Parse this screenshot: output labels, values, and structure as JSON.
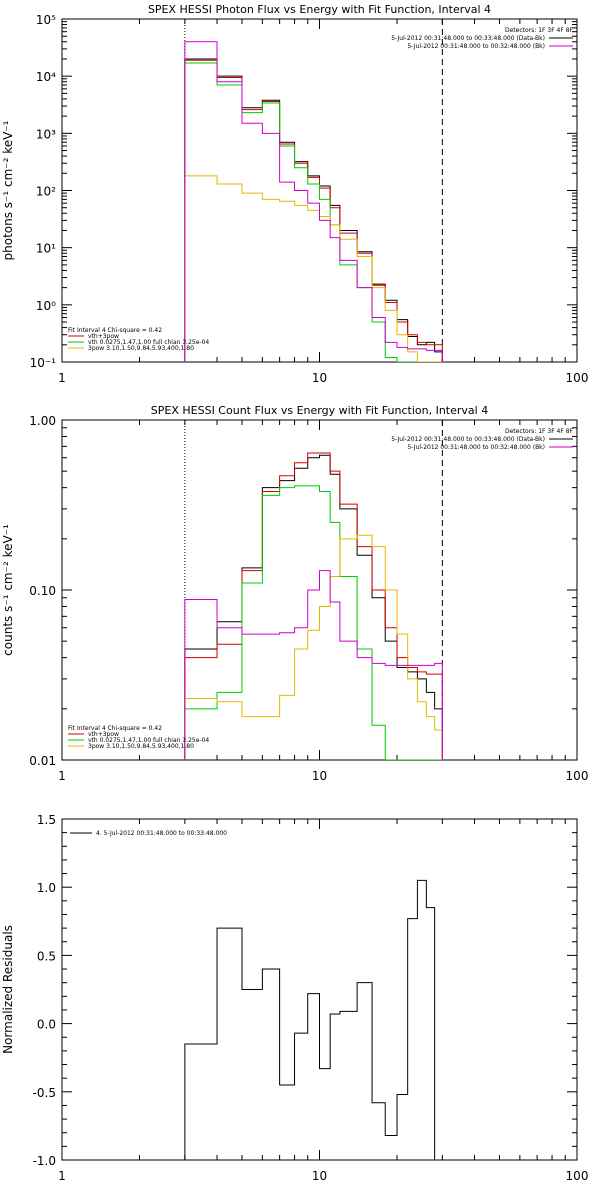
{
  "colors": {
    "data": "#000000",
    "total": "#d00000",
    "thermal": "#00cc00",
    "power": "#e6b800",
    "background": "#cc00cc"
  },
  "chart_data": [
    {
      "type": "line",
      "title": "SPEX HESSI Photon Flux vs Energy with Fit Function, Interval 4",
      "ylabel": "photons s⁻¹ cm⁻² keV⁻¹",
      "xlabel": "",
      "xscale": "log",
      "yscale": "log",
      "xlim": [
        1,
        100
      ],
      "ylim": [
        0.1,
        100000
      ],
      "xtick_labels": [
        "1",
        "10",
        "100"
      ],
      "ytick_labels": [
        "10⁻¹",
        "10⁰",
        "10¹",
        "10²",
        "10³",
        "10⁴",
        "10⁵"
      ],
      "legend_right": [
        "Detectors: 1F 3F 4F 8F",
        "5-Jul-2012 00:31:48.000 to 00:33:48.000 (Data-Bk)",
        "5-Jul-2012 00:31:48.000 to 00:32:48.000 (Bk)"
      ],
      "legend_left": [
        "Fit Interval 4   Chi-square = 0.42",
        "vth+3pow",
        "vth 0.0275,1.47,1.00  full chian 3.25e-04",
        "3pow 3.10,1.50,9.84,5.93,400,1.80"
      ],
      "vlines": [
        3,
        30
      ],
      "edges": [
        3,
        4,
        5,
        6,
        7,
        8,
        9,
        10,
        11,
        12,
        14,
        16,
        18,
        20,
        22,
        24,
        26,
        28,
        30
      ],
      "series": [
        {
          "name": "Data-Bk",
          "color_key": "data",
          "values": [
            20000,
            10000,
            2800,
            3800,
            700,
            320,
            180,
            120,
            55,
            20,
            8.5,
            2.3,
            1.2,
            0.55,
            0.28,
            0.2,
            0.22,
            0.15
          ]
        },
        {
          "name": "vth+3pow",
          "color_key": "total",
          "values": [
            19000,
            9500,
            2600,
            3600,
            650,
            300,
            170,
            110,
            50,
            18,
            8,
            2.2,
            1.1,
            0.5,
            0.3,
            0.22,
            0.2,
            0.2
          ]
        },
        {
          "name": "vth",
          "color_key": "thermal",
          "values": [
            17000,
            7000,
            2300,
            3400,
            600,
            250,
            130,
            70,
            25,
            5,
            2,
            0.5,
            0.12,
            0.1,
            0.1,
            0.1,
            0.1,
            0.1
          ]
        },
        {
          "name": "3pow",
          "color_key": "power",
          "values": [
            180,
            130,
            90,
            70,
            65,
            55,
            45,
            35,
            25,
            14,
            7,
            2,
            0.8,
            0.3,
            0.15,
            0.1,
            0.1,
            0.1
          ]
        },
        {
          "name": "Bk",
          "color_key": "background",
          "values": [
            40000,
            8000,
            1500,
            1000,
            140,
            100,
            60,
            30,
            15,
            6,
            2,
            0.6,
            0.22,
            0.18,
            0.17,
            0.17,
            0.16,
            0.16
          ]
        }
      ]
    },
    {
      "type": "line",
      "title": "SPEX HESSI Count Flux vs Energy with Fit Function, Interval 4",
      "ylabel": "counts s⁻¹ cm⁻² keV⁻¹",
      "xlabel": "",
      "xscale": "log",
      "yscale": "log",
      "xlim": [
        1,
        100
      ],
      "ylim": [
        0.01,
        1
      ],
      "xtick_labels": [
        "1",
        "10",
        "100"
      ],
      "ytick_labels": [
        "0.01",
        "0.10",
        "1.00"
      ],
      "legend_right": [
        "Detectors: 1F 3F 4F 8F",
        "5-Jul-2012 00:31:48.000 to 00:33:48.000 (Data-Bk)",
        "5-Jul-2012 00:31:48.000 to 00:32:48.000 (Bk)"
      ],
      "legend_left": [
        "Fit Interval 4   Chi-square = 0.42",
        "vth+3pow",
        "vth 0.0275,1.47,1.00  full chian 3.25e-04",
        "3pow 3.10,1.50,9.84,5.93,400,1.80"
      ],
      "vlines": [
        3,
        30
      ],
      "edges": [
        3,
        4,
        5,
        6,
        7,
        8,
        9,
        10,
        11,
        12,
        14,
        16,
        18,
        20,
        22,
        24,
        26,
        28,
        30
      ],
      "series": [
        {
          "name": "Data-Bk",
          "color_key": "data",
          "values": [
            0.045,
            0.065,
            0.135,
            0.4,
            0.44,
            0.52,
            0.6,
            0.62,
            0.48,
            0.3,
            0.16,
            0.09,
            0.05,
            0.035,
            0.033,
            0.03,
            0.025,
            0.02
          ]
        },
        {
          "name": "vth+3pow",
          "color_key": "total",
          "values": [
            0.04,
            0.048,
            0.13,
            0.38,
            0.47,
            0.56,
            0.64,
            0.64,
            0.5,
            0.32,
            0.18,
            0.1,
            0.06,
            0.04,
            0.035,
            0.033,
            0.032,
            0.032
          ]
        },
        {
          "name": "vth",
          "color_key": "thermal",
          "values": [
            0.02,
            0.025,
            0.11,
            0.36,
            0.4,
            0.41,
            0.41,
            0.38,
            0.25,
            0.12,
            0.045,
            0.016,
            0.01,
            0.01,
            0.01,
            0.01,
            0.01,
            0.01
          ]
        },
        {
          "name": "3pow",
          "color_key": "power",
          "values": [
            0.023,
            0.022,
            0.018,
            0.018,
            0.024,
            0.045,
            0.058,
            0.08,
            0.12,
            0.2,
            0.21,
            0.18,
            0.1,
            0.055,
            0.03,
            0.022,
            0.018,
            0.015
          ]
        },
        {
          "name": "Bk",
          "color_key": "background",
          "values": [
            0.088,
            0.06,
            0.055,
            0.055,
            0.056,
            0.06,
            0.1,
            0.13,
            0.085,
            0.05,
            0.04,
            0.037,
            0.036,
            0.036,
            0.036,
            0.036,
            0.036,
            0.037
          ]
        }
      ]
    },
    {
      "type": "line",
      "title": "",
      "ylabel": "Normalized Residuals",
      "xlabel": "",
      "xscale": "log",
      "yscale": "linear",
      "xlim": [
        1,
        100
      ],
      "ylim": [
        -1.0,
        1.5
      ],
      "xtick_labels": [
        "1",
        "10",
        "100"
      ],
      "ytick_labels": [
        "-1.0",
        "-0.5",
        "0.0",
        "0.5",
        "1.0",
        "1.5"
      ],
      "legend_left": [
        "4.  5-Jul-2012 00:31:48.000 to 00:33:48.000"
      ],
      "edges": [
        3,
        4,
        5,
        6,
        7,
        8,
        9,
        10,
        11,
        12,
        14,
        16,
        18,
        20,
        22,
        24,
        26,
        28,
        30
      ],
      "series": [
        {
          "name": "4.  5-Jul-2012 00:31:48.000 to 00:33:48.000",
          "color_key": "data",
          "values": [
            -0.15,
            0.7,
            0.25,
            0.4,
            -0.45,
            -0.07,
            0.22,
            -0.33,
            0.07,
            0.09,
            0.3,
            -0.58,
            -0.82,
            -0.52,
            0.77,
            1.05,
            0.85,
            -1.0
          ]
        }
      ]
    }
  ]
}
